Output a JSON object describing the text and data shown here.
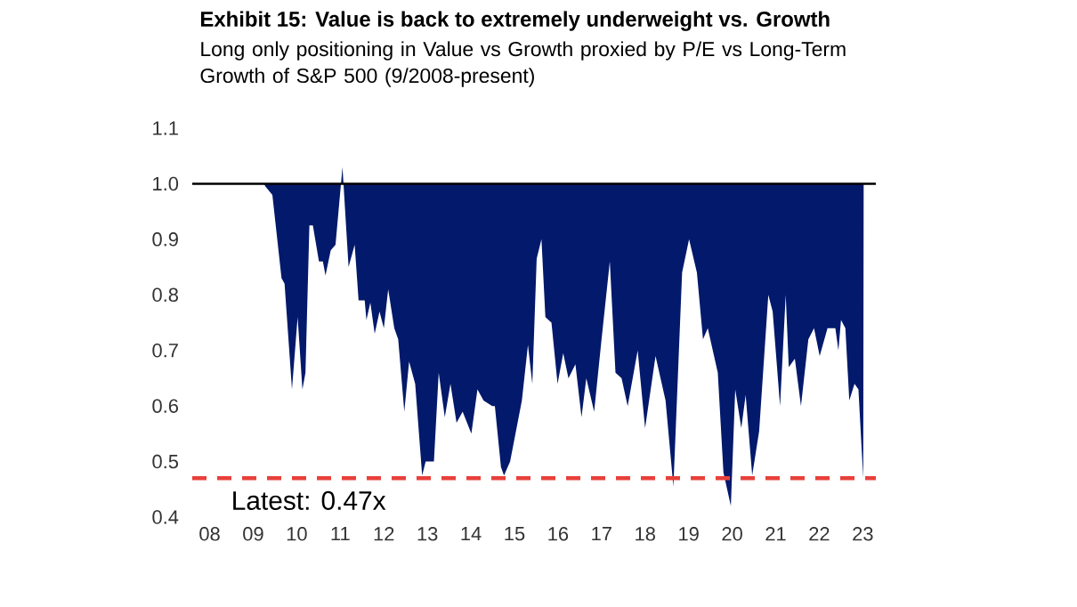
{
  "chart_data": {
    "type": "area",
    "title": "Exhibit 15: Value is back to extremely underweight vs. Growth",
    "subtitle": "Long only positioning in Value vs Growth proxied by P/E vs Long-Term Growth of S&P 500 (9/2008-present)",
    "x": [
      2009.25,
      2009.28,
      2009.44,
      2009.65,
      2009.72,
      2009.89,
      2010.02,
      2010.13,
      2010.2,
      2010.29,
      2010.37,
      2010.51,
      2010.6,
      2010.66,
      2010.78,
      2010.89,
      2011.05,
      2011.19,
      2011.33,
      2011.42,
      2011.56,
      2011.6,
      2011.69,
      2011.79,
      2011.9,
      2012.0,
      2012.1,
      2012.24,
      2012.33,
      2012.47,
      2012.58,
      2012.72,
      2012.88,
      2012.96,
      2013.15,
      2013.26,
      2013.4,
      2013.53,
      2013.67,
      2013.81,
      2014.01,
      2014.15,
      2014.29,
      2014.49,
      2014.55,
      2014.69,
      2014.76,
      2014.9,
      2015.17,
      2015.31,
      2015.41,
      2015.51,
      2015.62,
      2015.71,
      2015.85,
      2015.99,
      2016.12,
      2016.24,
      2016.4,
      2016.54,
      2016.65,
      2016.83,
      2017.0,
      2017.19,
      2017.32,
      2017.46,
      2017.6,
      2017.83,
      2018.0,
      2018.24,
      2018.47,
      2018.65,
      2018.85,
      2019.01,
      2019.19,
      2019.33,
      2019.44,
      2019.67,
      2019.8,
      2019.97,
      2020.07,
      2020.21,
      2020.31,
      2020.46,
      2020.62,
      2020.83,
      2020.93,
      2021.1,
      2021.23,
      2021.3,
      2021.44,
      2021.58,
      2021.75,
      2021.88,
      2022.01,
      2022.19,
      2022.37,
      2022.44,
      2022.5,
      2022.6,
      2022.69,
      2022.81,
      2022.9,
      2023.01,
      2023.02
    ],
    "series": [
      {
        "color": "#03196b",
        "values": [
          1.0,
          0.995,
          0.98,
          0.83,
          0.82,
          0.63,
          0.76,
          0.63,
          0.66,
          0.925,
          0.925,
          0.86,
          0.86,
          0.835,
          0.88,
          0.89,
          1.03,
          0.85,
          0.89,
          0.79,
          0.79,
          0.755,
          0.786,
          0.73,
          0.77,
          0.74,
          0.81,
          0.74,
          0.72,
          0.59,
          0.68,
          0.64,
          0.475,
          0.5,
          0.5,
          0.66,
          0.58,
          0.64,
          0.57,
          0.59,
          0.55,
          0.63,
          0.61,
          0.6,
          0.6,
          0.49,
          0.475,
          0.5,
          0.61,
          0.71,
          0.64,
          0.865,
          0.9,
          0.76,
          0.75,
          0.64,
          0.695,
          0.65,
          0.675,
          0.58,
          0.65,
          0.59,
          0.72,
          0.86,
          0.66,
          0.65,
          0.6,
          0.7,
          0.56,
          0.69,
          0.61,
          0.455,
          0.84,
          0.9,
          0.84,
          0.72,
          0.74,
          0.66,
          0.48,
          0.42,
          0.63,
          0.56,
          0.62,
          0.475,
          0.555,
          0.8,
          0.77,
          0.6,
          0.8,
          0.67,
          0.685,
          0.6,
          0.72,
          0.74,
          0.69,
          0.74,
          0.74,
          0.7,
          0.755,
          0.74,
          0.61,
          0.64,
          0.63,
          0.47,
          1.0
        ]
      }
    ],
    "xlim": [
      2007.6,
      2023.3
    ],
    "ylim": [
      0.4,
      1.1
    ],
    "xticks": [
      {
        "value": 2008,
        "label": "08"
      },
      {
        "value": 2009,
        "label": "09"
      },
      {
        "value": 2010,
        "label": "10"
      },
      {
        "value": 2011,
        "label": "11"
      },
      {
        "value": 2012,
        "label": "12"
      },
      {
        "value": 2013,
        "label": "13"
      },
      {
        "value": 2014,
        "label": "14"
      },
      {
        "value": 2015,
        "label": "15"
      },
      {
        "value": 2016,
        "label": "16"
      },
      {
        "value": 2017,
        "label": "17"
      },
      {
        "value": 2018,
        "label": "18"
      },
      {
        "value": 2019,
        "label": "19"
      },
      {
        "value": 2020,
        "label": "20"
      },
      {
        "value": 2021,
        "label": "21"
      },
      {
        "value": 2022,
        "label": "22"
      },
      {
        "value": 2023,
        "label": "23"
      }
    ],
    "yticks": [
      0.4,
      0.5,
      0.6,
      0.7,
      0.8,
      0.9,
      {
        "value": 1.0,
        "label": "1.0"
      },
      1.1
    ],
    "ref_lines": [
      {
        "axis": "y",
        "value": 1.0,
        "color": "#000000",
        "line_style": "solid"
      },
      {
        "axis": "y",
        "value": 0.47,
        "label": "Latest: 0.47x",
        "color": "#e8403a",
        "line_style": "dashed"
      }
    ]
  }
}
